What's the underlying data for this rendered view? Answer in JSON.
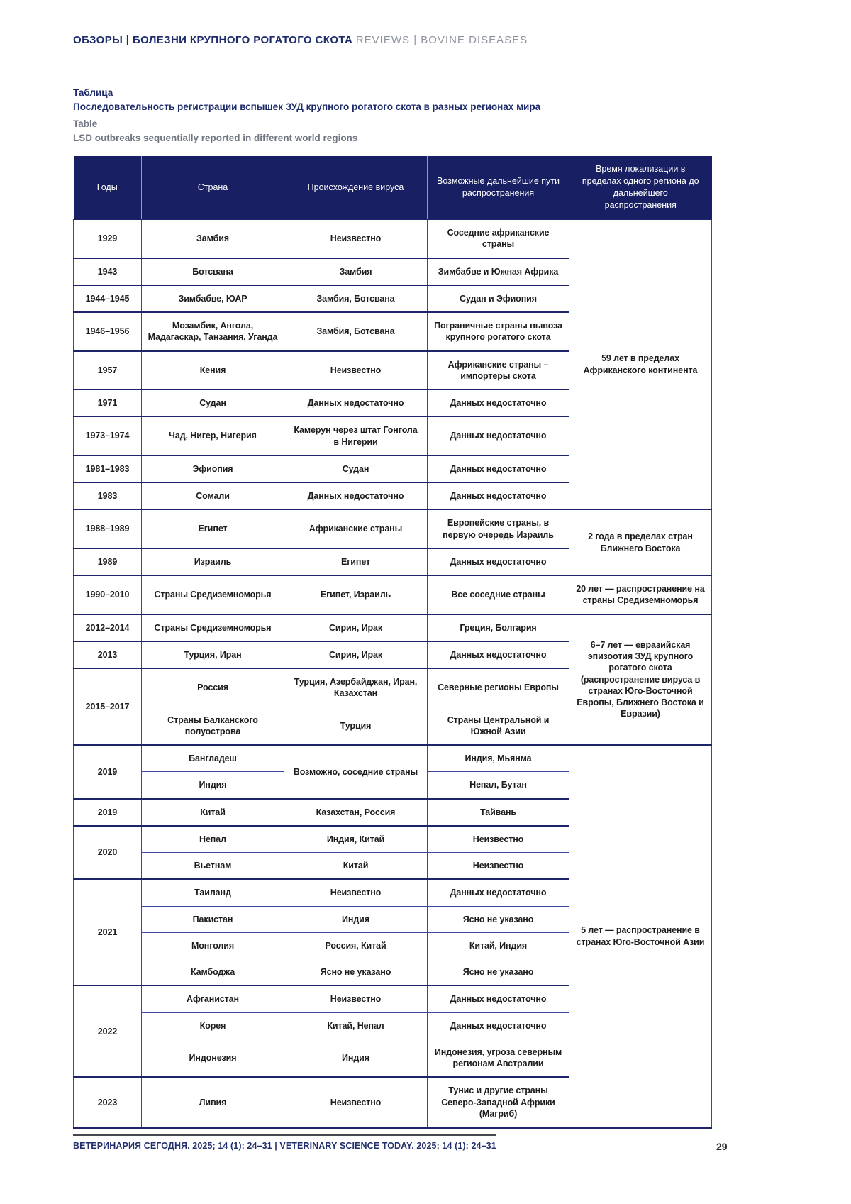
{
  "page": {
    "running_head_ru": "ОБЗОРЫ | БОЛЕЗНИ КРУПНОГО РОГАТОГО СКОТА",
    "running_head_en": "REVIEWS | BOVINE DISEASES",
    "caption_ru_label": "Таблица",
    "caption_ru": "Последовательность регистрации вспышек ЗУД крупного рогатого скота в разных регионах мира",
    "caption_en_label": "Table",
    "caption_en": "LSD outbreaks sequentially reported in different world regions",
    "footer": "ВЕТЕРИНАРИЯ СЕГОДНЯ. 2025; 14 (1): 24–31 | VETERINARY SCIENCE TODAY. 2025; 14 (1): 24–31",
    "page_number": "29"
  },
  "colors": {
    "header_background": "#181f62",
    "cell_border_blue": "#3a47a0",
    "group_border_navy": "#1c2569",
    "navy_text": "#1d2b6b",
    "gray_text": "#6f7680",
    "body_text": "#1d1d1d"
  },
  "table": {
    "columns": [
      "Годы",
      "Страна",
      "Происхождение вируса",
      "Возможные дальнейшие пути распространения",
      "Время локализации в пределах одного региона до дальнейшего распространения"
    ],
    "rows": [
      {
        "group": true,
        "cells": [
          {
            "c": 0,
            "t": "1929"
          },
          {
            "c": 1,
            "t": "Замбия"
          },
          {
            "c": 2,
            "t": "Неизвестно"
          },
          {
            "c": 3,
            "t": "Соседние африканские страны"
          },
          {
            "c": 4,
            "rs": 9,
            "t": "59 лет в пределах Африканского континента"
          }
        ]
      },
      {
        "group": true,
        "cells": [
          {
            "c": 0,
            "t": "1943"
          },
          {
            "c": 1,
            "t": "Ботсвана"
          },
          {
            "c": 2,
            "t": "Замбия"
          },
          {
            "c": 3,
            "t": "Зимбабве и Южная Африка"
          }
        ]
      },
      {
        "group": true,
        "cells": [
          {
            "c": 0,
            "t": "1944–1945"
          },
          {
            "c": 1,
            "t": "Зимбабве, ЮАР"
          },
          {
            "c": 2,
            "t": "Замбия, Ботсвана"
          },
          {
            "c": 3,
            "t": "Судан и Эфиопия"
          }
        ]
      },
      {
        "group": true,
        "cells": [
          {
            "c": 0,
            "t": "1946–1956"
          },
          {
            "c": 1,
            "t": "Мозамбик, Ангола, Мадагаскар, Танзания, Уганда"
          },
          {
            "c": 2,
            "t": "Замбия, Ботсвана"
          },
          {
            "c": 3,
            "t": "Пограничные страны вывоза крупного рогатого скота"
          }
        ]
      },
      {
        "group": true,
        "cells": [
          {
            "c": 0,
            "t": "1957"
          },
          {
            "c": 1,
            "t": "Кения"
          },
          {
            "c": 2,
            "t": "Неизвестно"
          },
          {
            "c": 3,
            "t": "Африканские страны – импортеры скота"
          }
        ]
      },
      {
        "group": true,
        "cells": [
          {
            "c": 0,
            "t": "1971"
          },
          {
            "c": 1,
            "t": "Судан"
          },
          {
            "c": 2,
            "t": "Данных недостаточно"
          },
          {
            "c": 3,
            "t": "Данных недостаточно"
          }
        ]
      },
      {
        "group": true,
        "cells": [
          {
            "c": 0,
            "t": "1973–1974"
          },
          {
            "c": 1,
            "t": "Чад, Нигер, Нигерия"
          },
          {
            "c": 2,
            "t": "Камерун через штат Гонгола в Нигерии"
          },
          {
            "c": 3,
            "t": "Данных недостаточно"
          }
        ]
      },
      {
        "group": true,
        "cells": [
          {
            "c": 0,
            "t": "1981–1983"
          },
          {
            "c": 1,
            "t": "Эфиопия"
          },
          {
            "c": 2,
            "t": "Судан"
          },
          {
            "c": 3,
            "t": "Данных недостаточно"
          }
        ]
      },
      {
        "group": true,
        "cells": [
          {
            "c": 0,
            "t": "1983"
          },
          {
            "c": 1,
            "t": "Сомали"
          },
          {
            "c": 2,
            "t": "Данных недостаточно"
          },
          {
            "c": 3,
            "t": "Данных недостаточно"
          }
        ]
      },
      {
        "group": true,
        "cells": [
          {
            "c": 0,
            "t": "1988–1989"
          },
          {
            "c": 1,
            "t": "Египет"
          },
          {
            "c": 2,
            "t": "Африканские страны"
          },
          {
            "c": 3,
            "t": "Европейские страны, в первую очередь Израиль"
          },
          {
            "c": 4,
            "rs": 2,
            "t": "2 года в пределах стран Ближнего Востока"
          }
        ]
      },
      {
        "group": true,
        "cells": [
          {
            "c": 0,
            "t": "1989"
          },
          {
            "c": 1,
            "t": "Израиль"
          },
          {
            "c": 2,
            "t": "Египет"
          },
          {
            "c": 3,
            "t": "Данных недостаточно"
          }
        ]
      },
      {
        "group": true,
        "cells": [
          {
            "c": 0,
            "t": "1990–2010"
          },
          {
            "c": 1,
            "t": "Страны Средиземноморья"
          },
          {
            "c": 2,
            "t": "Египет, Израиль"
          },
          {
            "c": 3,
            "t": "Все соседние страны"
          },
          {
            "c": 4,
            "t": "20 лет — распространение на страны Средиземноморья"
          }
        ]
      },
      {
        "group": true,
        "cells": [
          {
            "c": 0,
            "t": "2012–2014"
          },
          {
            "c": 1,
            "t": "Страны Средиземноморья"
          },
          {
            "c": 2,
            "t": "Сирия, Ирак"
          },
          {
            "c": 3,
            "t": "Греция, Болгария"
          },
          {
            "c": 4,
            "rs": 4,
            "t": "6–7 лет — евразийская эпизоотия ЗУД крупного рогатого скота (распространение вируса в странах Юго-Восточной Европы, Ближнего Востока и Евразии)"
          }
        ]
      },
      {
        "group": true,
        "cells": [
          {
            "c": 0,
            "t": "2013"
          },
          {
            "c": 1,
            "t": "Турция, Иран"
          },
          {
            "c": 2,
            "t": "Сирия, Ирак"
          },
          {
            "c": 3,
            "t": "Данных недостаточно"
          }
        ]
      },
      {
        "group": true,
        "cells": [
          {
            "c": 0,
            "rs": 2,
            "t": "2015–2017"
          },
          {
            "c": 1,
            "t": "Россия"
          },
          {
            "c": 2,
            "t": "Турция, Азербайджан, Иран, Казахстан"
          },
          {
            "c": 3,
            "t": "Северные регионы Европы"
          }
        ]
      },
      {
        "group": false,
        "cells": [
          {
            "c": 1,
            "t": "Страны Балканского полуострова"
          },
          {
            "c": 2,
            "t": "Турция"
          },
          {
            "c": 3,
            "t": "Страны Центральной и Южной Азии"
          }
        ]
      },
      {
        "group": true,
        "cells": [
          {
            "c": 0,
            "rs": 2,
            "t": "2019"
          },
          {
            "c": 1,
            "t": "Бангладеш"
          },
          {
            "c": 2,
            "rs": 2,
            "t": "Возможно, соседние страны"
          },
          {
            "c": 3,
            "t": "Индия, Мьянма"
          },
          {
            "c": 4,
            "rs": 13,
            "t": "5 лет — распространение в странах Юго-Восточной Азии"
          }
        ]
      },
      {
        "group": false,
        "cells": [
          {
            "c": 1,
            "t": "Индия"
          },
          {
            "c": 3,
            "t": "Непал, Бутан"
          }
        ]
      },
      {
        "group": true,
        "cells": [
          {
            "c": 0,
            "t": "2019"
          },
          {
            "c": 1,
            "t": "Китай"
          },
          {
            "c": 2,
            "t": "Казахстан, Россия"
          },
          {
            "c": 3,
            "t": "Тайвань"
          }
        ]
      },
      {
        "group": true,
        "cells": [
          {
            "c": 0,
            "rs": 2,
            "t": "2020"
          },
          {
            "c": 1,
            "t": "Непал"
          },
          {
            "c": 2,
            "t": "Индия, Китай"
          },
          {
            "c": 3,
            "t": "Неизвестно"
          }
        ]
      },
      {
        "group": false,
        "cells": [
          {
            "c": 1,
            "t": "Вьетнам"
          },
          {
            "c": 2,
            "t": "Китай"
          },
          {
            "c": 3,
            "t": "Неизвестно"
          }
        ]
      },
      {
        "group": true,
        "cells": [
          {
            "c": 0,
            "rs": 4,
            "t": "2021"
          },
          {
            "c": 1,
            "t": "Таиланд"
          },
          {
            "c": 2,
            "t": "Неизвестно"
          },
          {
            "c": 3,
            "t": "Данных недостаточно"
          }
        ]
      },
      {
        "group": false,
        "cells": [
          {
            "c": 1,
            "t": "Пакистан"
          },
          {
            "c": 2,
            "t": "Индия"
          },
          {
            "c": 3,
            "t": "Ясно не указано"
          }
        ]
      },
      {
        "group": false,
        "cells": [
          {
            "c": 1,
            "t": "Монголия"
          },
          {
            "c": 2,
            "t": "Россия, Китай"
          },
          {
            "c": 3,
            "t": "Китай, Индия"
          }
        ]
      },
      {
        "group": false,
        "cells": [
          {
            "c": 1,
            "t": "Камбоджа"
          },
          {
            "c": 2,
            "t": "Ясно не указано"
          },
          {
            "c": 3,
            "t": "Ясно не указано"
          }
        ]
      },
      {
        "group": true,
        "cells": [
          {
            "c": 0,
            "rs": 3,
            "t": "2022"
          },
          {
            "c": 1,
            "t": "Афганистан"
          },
          {
            "c": 2,
            "t": "Неизвестно"
          },
          {
            "c": 3,
            "t": "Данных недостаточно"
          }
        ]
      },
      {
        "group": false,
        "cells": [
          {
            "c": 1,
            "t": "Корея"
          },
          {
            "c": 2,
            "t": "Китай, Непал"
          },
          {
            "c": 3,
            "t": "Данных недостаточно"
          }
        ]
      },
      {
        "group": false,
        "cells": [
          {
            "c": 1,
            "t": "Индонезия"
          },
          {
            "c": 2,
            "t": "Индия"
          },
          {
            "c": 3,
            "t": "Индонезия, угроза северным регионам Австралии"
          }
        ]
      },
      {
        "group": true,
        "cells": [
          {
            "c": 0,
            "t": "2023"
          },
          {
            "c": 1,
            "t": "Ливия"
          },
          {
            "c": 2,
            "t": "Неизвестно"
          },
          {
            "c": 3,
            "t": "Тунис и другие страны Северо-Западной Африки (Магриб)"
          }
        ]
      }
    ]
  }
}
